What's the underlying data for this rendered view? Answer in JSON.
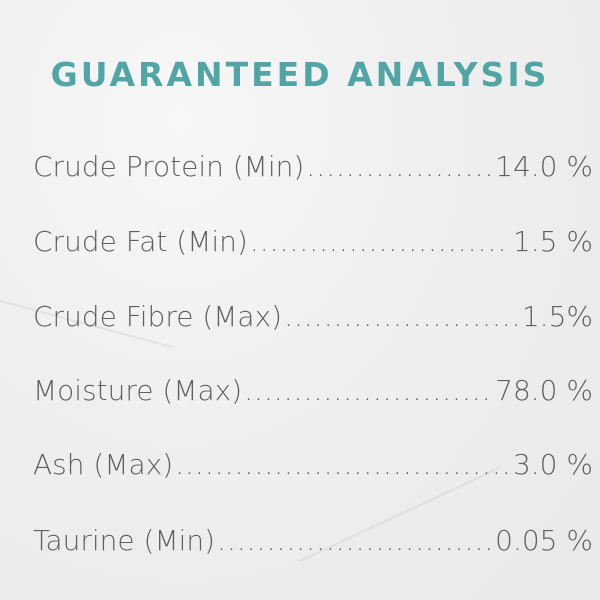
{
  "title": "GUARANTEED ANALYSIS",
  "colors": {
    "title": "#52a5a5",
    "text": "#606060"
  },
  "rows": [
    {
      "label": "Crude Protein (Min)",
      "value": "14.0 %"
    },
    {
      "label": "Crude Fat (Min)",
      "value": "1.5 %"
    },
    {
      "label": "Crude Fibre (Max)",
      "value": "1.5%"
    },
    {
      "label": "Moisture (Max)",
      "value": "78.0 %"
    },
    {
      "label": "Ash (Max)",
      "value": "3.0 %"
    },
    {
      "label": "Taurine (Min)",
      "value": "0.05 %"
    }
  ]
}
